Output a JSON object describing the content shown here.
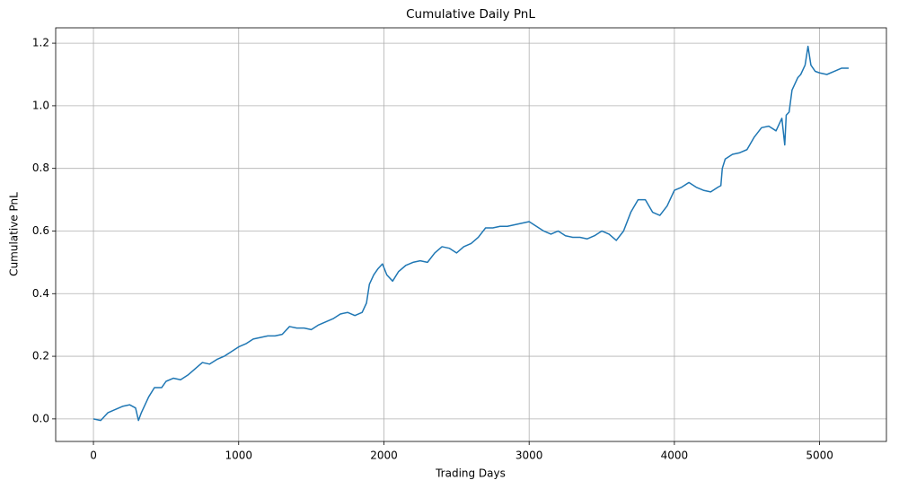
{
  "chart_data": {
    "type": "line",
    "title": "Cumulative Daily PnL",
    "x_label": "Trading Days",
    "y_label": "Cumulative PnL",
    "x": [
      0,
      50,
      100,
      150,
      200,
      250,
      290,
      310,
      330,
      380,
      420,
      470,
      500,
      550,
      600,
      650,
      700,
      750,
      800,
      850,
      900,
      950,
      1000,
      1050,
      1100,
      1150,
      1200,
      1250,
      1300,
      1350,
      1400,
      1450,
      1500,
      1550,
      1600,
      1650,
      1700,
      1750,
      1800,
      1850,
      1880,
      1900,
      1930,
      1960,
      1990,
      2020,
      2060,
      2100,
      2150,
      2200,
      2250,
      2300,
      2350,
      2400,
      2450,
      2500,
      2550,
      2600,
      2650,
      2700,
      2750,
      2800,
      2850,
      2900,
      2950,
      3000,
      3050,
      3100,
      3150,
      3200,
      3250,
      3300,
      3350,
      3400,
      3450,
      3500,
      3550,
      3600,
      3650,
      3700,
      3750,
      3800,
      3850,
      3900,
      3950,
      4000,
      4050,
      4100,
      4150,
      4200,
      4250,
      4300,
      4320,
      4330,
      4350,
      4400,
      4450,
      4500,
      4550,
      4600,
      4650,
      4700,
      4740,
      4760,
      4770,
      4790,
      4810,
      4830,
      4850,
      4870,
      4900,
      4920,
      4940,
      4970,
      5000,
      5050,
      5100,
      5150,
      5200
    ],
    "series": [
      {
        "color": "#1f77b4",
        "values": [
          0,
          -0.005,
          0.02,
          0.03,
          0.04,
          0.045,
          0.035,
          -0.005,
          0.02,
          0.07,
          0.1,
          0.1,
          0.12,
          0.13,
          0.125,
          0.14,
          0.16,
          0.18,
          0.175,
          0.19,
          0.2,
          0.215,
          0.23,
          0.24,
          0.255,
          0.26,
          0.265,
          0.265,
          0.27,
          0.295,
          0.29,
          0.29,
          0.285,
          0.3,
          0.31,
          0.32,
          0.335,
          0.34,
          0.33,
          0.34,
          0.37,
          0.43,
          0.46,
          0.48,
          0.495,
          0.46,
          0.44,
          0.47,
          0.49,
          0.5,
          0.505,
          0.5,
          0.53,
          0.55,
          0.545,
          0.53,
          0.55,
          0.56,
          0.58,
          0.61,
          0.61,
          0.615,
          0.615,
          0.62,
          0.625,
          0.63,
          0.615,
          0.6,
          0.59,
          0.6,
          0.585,
          0.58,
          0.58,
          0.575,
          0.585,
          0.6,
          0.59,
          0.57,
          0.6,
          0.66,
          0.7,
          0.7,
          0.66,
          0.65,
          0.68,
          0.73,
          0.74,
          0.755,
          0.74,
          0.73,
          0.725,
          0.74,
          0.745,
          0.8,
          0.83,
          0.845,
          0.85,
          0.86,
          0.9,
          0.93,
          0.935,
          0.92,
          0.96,
          0.875,
          0.97,
          0.98,
          1.05,
          1.07,
          1.09,
          1.1,
          1.13,
          1.19,
          1.13,
          1.11,
          1.105,
          1.1,
          1.11,
          1.12,
          1.12
        ]
      }
    ],
    "xlim": [
      -260,
      5460
    ],
    "xticks": [
      0,
      1000,
      2000,
      3000,
      4000,
      5000
    ],
    "ylim": [
      -0.072,
      1.249
    ],
    "yticks": [
      {
        "value": 0,
        "label": "0.0"
      },
      0.2,
      0.4,
      0.6,
      0.8,
      {
        "value": 1,
        "label": "1.0"
      },
      1.2
    ],
    "grid": true
  }
}
